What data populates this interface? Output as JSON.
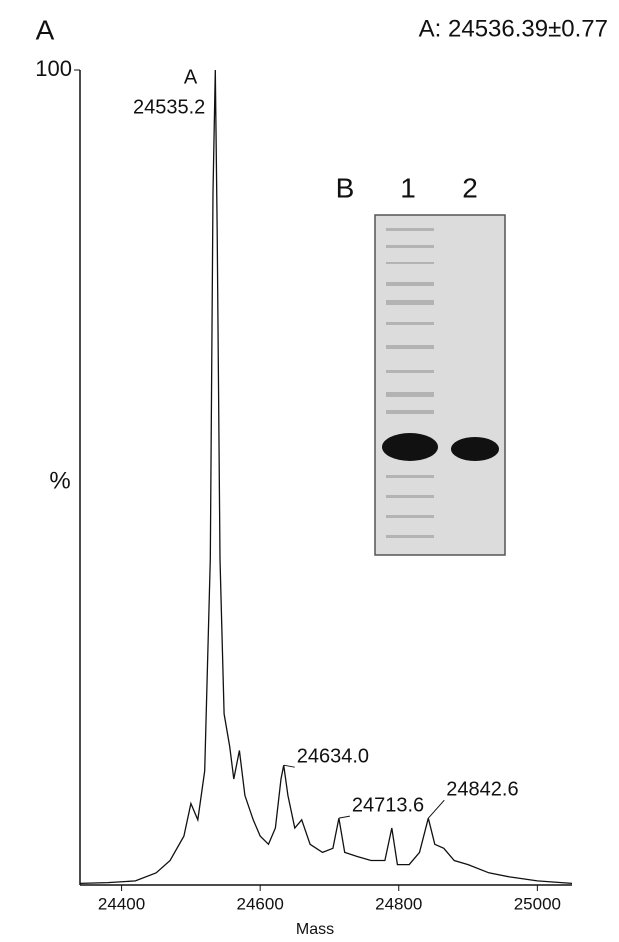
{
  "chart_data": {
    "type": "line",
    "panel_label": "A",
    "result_text": "A: 24536.39±0.77",
    "ylabel": "%",
    "xlabel": "Mass",
    "xlim": [
      24340,
      25050
    ],
    "xticks": [
      24400,
      24600,
      24800,
      25000
    ],
    "ylim": [
      0,
      100
    ],
    "yticks": [
      100
    ],
    "series": [
      {
        "color": "#111111",
        "x": [
          24340,
          24380,
          24420,
          24450,
          24470,
          24490,
          24500,
          24510,
          24520,
          24528,
          24532,
          24535.2,
          24538,
          24542,
          24548,
          24556,
          24562,
          24570,
          24578,
          24590,
          24600,
          24612,
          24622,
          24630,
          24634,
          24640,
          24650,
          24660,
          24672,
          24690,
          24705,
          24713.6,
          24722,
          24740,
          24760,
          24780,
          24790,
          24798,
          24815,
          24830,
          24842.6,
          24852,
          24865,
          24880,
          24900,
          24930,
          24960,
          25000,
          25050
        ],
        "values": [
          0.2,
          0.3,
          0.5,
          1.5,
          3,
          6,
          10,
          8,
          14,
          40,
          85,
          100,
          80,
          40,
          21,
          17,
          13,
          16.5,
          11,
          8,
          6,
          5,
          7,
          13,
          14.7,
          11,
          7,
          8,
          5,
          4,
          4.5,
          8.2,
          4,
          3.5,
          3,
          3,
          7,
          2.5,
          2.5,
          4,
          8.2,
          5,
          4.5,
          3,
          2.5,
          1.5,
          1,
          0.5,
          0.2
        ]
      }
    ],
    "peak_labels": [
      {
        "name": "A",
        "label": "24535.2",
        "x": 24535.2,
        "y": 100
      },
      {
        "label": "24634.0",
        "x": 24634,
        "y": 14.7
      },
      {
        "label": "24713.6",
        "x": 24713.6,
        "y": 8.2
      },
      {
        "label": "24842.6",
        "x": 24842.6,
        "y": 8.2
      }
    ],
    "inset": {
      "panel_label": "B",
      "lanes": [
        "1",
        "2"
      ]
    }
  }
}
